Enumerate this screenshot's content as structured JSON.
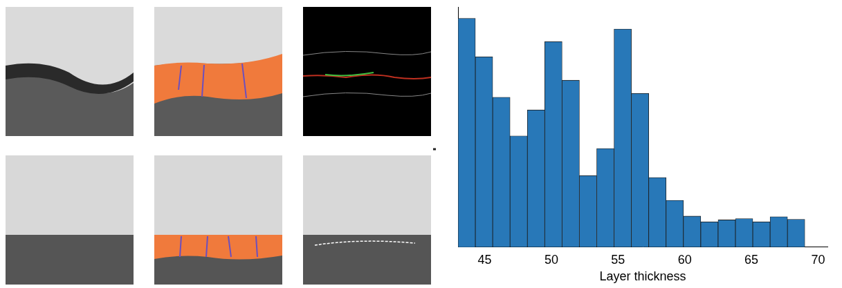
{
  "chart_data": {
    "type": "histogram",
    "x_label": "Layer thickness",
    "bins": [
      43.0,
      44.3,
      45.6,
      46.9,
      48.2,
      49.5,
      50.8,
      52.1,
      53.4,
      54.7,
      56.0,
      57.3,
      58.6,
      59.9,
      61.2,
      62.5,
      63.8,
      65.1,
      66.4,
      67.7,
      69.0
    ],
    "values": [
      362,
      301,
      237,
      176,
      217,
      325,
      264,
      113,
      156,
      345,
      243,
      110,
      74,
      49,
      40,
      43,
      45,
      40,
      48,
      44
    ],
    "color": "#2878b8",
    "xlim": [
      43,
      70.7
    ],
    "xticks": [
      45,
      50,
      55,
      60,
      65,
      70
    ],
    "ylim": [
      0,
      380
    ],
    "grid": false,
    "tick_labels": "x"
  }
}
